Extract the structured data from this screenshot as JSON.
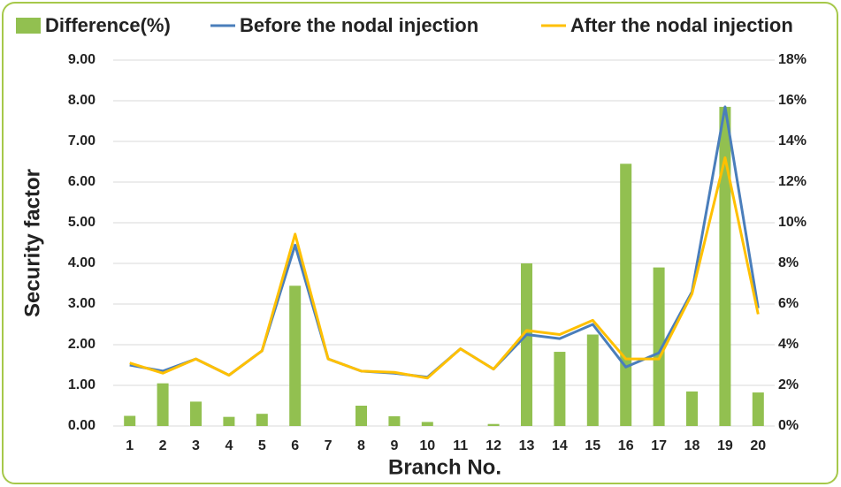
{
  "chart_data": {
    "type": "combo",
    "x_label": "Branch No.",
    "y_label": "Security factor",
    "categories": [
      "1",
      "2",
      "3",
      "4",
      "5",
      "6",
      "7",
      "8",
      "9",
      "10",
      "11",
      "12",
      "13",
      "14",
      "15",
      "16",
      "17",
      "18",
      "19",
      "20"
    ],
    "series": [
      {
        "name": "Difference(%)",
        "type": "bar",
        "axis": "y2",
        "color": "#92c050",
        "values": [
          0.5,
          2.1,
          1.2,
          0.45,
          0.6,
          6.9,
          0,
          1.0,
          0.48,
          0.2,
          0,
          0.1,
          8.0,
          3.65,
          4.5,
          12.9,
          7.8,
          1.7,
          15.7,
          1.65
        ]
      },
      {
        "name": "Before the nodal injection",
        "type": "line",
        "axis": "y",
        "color": "#4a7ebb",
        "values": [
          1.5,
          1.35,
          1.65,
          1.25,
          1.85,
          4.45,
          1.65,
          1.35,
          1.3,
          1.2,
          1.9,
          1.4,
          2.25,
          2.15,
          2.5,
          1.45,
          1.8,
          3.3,
          7.85,
          2.9
        ]
      },
      {
        "name": "After the nodal injection",
        "type": "line",
        "axis": "y",
        "color": "#ffc000",
        "values": [
          1.55,
          1.3,
          1.65,
          1.25,
          1.85,
          4.72,
          1.65,
          1.35,
          1.32,
          1.18,
          1.9,
          1.4,
          2.35,
          2.25,
          2.6,
          1.65,
          1.65,
          3.25,
          6.6,
          2.75
        ]
      }
    ],
    "ylim": [
      0,
      9
    ],
    "yticks": [
      {
        "value": 0,
        "label": "0.00"
      },
      {
        "value": 1,
        "label": "1.00"
      },
      {
        "value": 2,
        "label": "2.00"
      },
      {
        "value": 3,
        "label": "3.00"
      },
      {
        "value": 4,
        "label": "4.00"
      },
      {
        "value": 5,
        "label": "5.00"
      },
      {
        "value": 6,
        "label": "6.00"
      },
      {
        "value": 7,
        "label": "7.00"
      },
      {
        "value": 8,
        "label": "8.00"
      },
      {
        "value": 9,
        "label": "9.00"
      }
    ],
    "y2lim": [
      0,
      18
    ],
    "y2ticks": [
      {
        "value": 0,
        "label": "0%"
      },
      {
        "value": 2,
        "label": "2%"
      },
      {
        "value": 4,
        "label": "4%"
      },
      {
        "value": 6,
        "label": "6%"
      },
      {
        "value": 8,
        "label": "8%"
      },
      {
        "value": 10,
        "label": "10%"
      },
      {
        "value": 12,
        "label": "12%"
      },
      {
        "value": 14,
        "label": "14%"
      },
      {
        "value": 16,
        "label": "16%"
      },
      {
        "value": 18,
        "label": "18%"
      }
    ],
    "grid": true,
    "legend": "top"
  }
}
